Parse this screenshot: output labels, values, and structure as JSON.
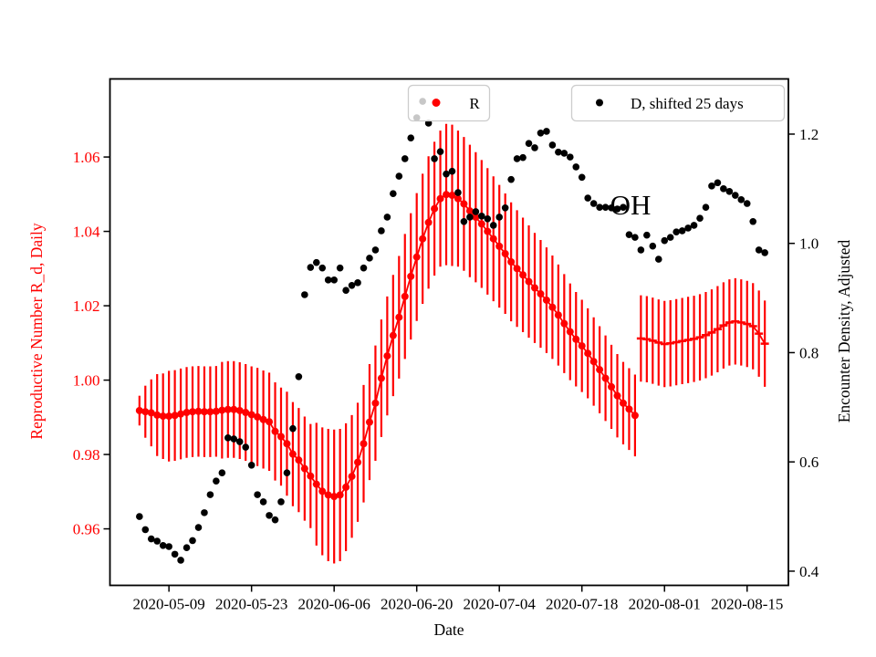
{
  "colors": {
    "r_series": "#ff0000",
    "d_series": "#000000",
    "frame": "#000000",
    "legend_border": "#cccccc"
  },
  "annotation": {
    "text": "OH"
  },
  "legend_r": {
    "label": "R"
  },
  "legend_d": {
    "label": "D, shifted 25 days"
  },
  "chart_data": {
    "type": "scatter",
    "title": "",
    "xlabel": "Date",
    "ylabel_left": "Reproductive Number R_d, Daily",
    "ylabel_right": "Encounter Density, Adjusted",
    "annotation": "OH",
    "legend_entries": [
      "R",
      "D, shifted 25 days"
    ],
    "legend_position": "upper center, two boxes",
    "grid": false,
    "x_start_date": "2020-05-04",
    "x_step_days": 1,
    "x_day_range": [
      -10,
      105
    ],
    "x_ticks": [
      {
        "label": "2020-05-09",
        "day": 0
      },
      {
        "label": "2020-05-23",
        "day": 14
      },
      {
        "label": "2020-06-06",
        "day": 28
      },
      {
        "label": "2020-06-20",
        "day": 42
      },
      {
        "label": "2020-07-04",
        "day": 56
      },
      {
        "label": "2020-07-18",
        "day": 70
      },
      {
        "label": "2020-08-01",
        "day": 84
      },
      {
        "label": "2020-08-15",
        "day": 98
      }
    ],
    "left_axis": {
      "range": [
        0.9448,
        1.081
      ],
      "ticks": [
        {
          "label": "1.06",
          "value": 1.06
        },
        {
          "label": "1.04",
          "value": 1.04
        },
        {
          "label": "1.02",
          "value": 1.02
        },
        {
          "label": "1.00",
          "value": 1.0
        },
        {
          "label": "0.98",
          "value": 0.98
        },
        {
          "label": "0.96",
          "value": 0.96
        }
      ]
    },
    "right_axis": {
      "range": [
        0.374,
        1.301
      ],
      "ticks": [
        {
          "label": "1.2",
          "value": 1.2
        },
        {
          "label": "1.0",
          "value": 1.0
        },
        {
          "label": "0.8",
          "value": 0.8
        },
        {
          "label": "0.6",
          "value": 0.6
        },
        {
          "label": "0.4",
          "value": 0.4
        }
      ]
    },
    "series": [
      {
        "name": "R",
        "axis": "left",
        "style": "dots with error bars, connected line",
        "start_day_offset": -5,
        "values": [
          0.9918,
          0.9915,
          0.9912,
          0.9906,
          0.9903,
          0.9903,
          0.9905,
          0.9909,
          0.9913,
          0.9915,
          0.9916,
          0.9915,
          0.9915,
          0.9916,
          0.9919,
          0.9921,
          0.9921,
          0.9918,
          0.9913,
          0.9907,
          0.9901,
          0.9894,
          0.9888,
          0.9862,
          0.9848,
          0.9829,
          0.9801,
          0.9785,
          0.9762,
          0.9742,
          0.972,
          0.9701,
          0.9691,
          0.9687,
          0.9691,
          0.9712,
          0.9741,
          0.9779,
          0.9829,
          0.9887,
          0.9938,
          1.0005,
          1.0065,
          1.012,
          1.0169,
          1.0225,
          1.0279,
          1.0331,
          1.038,
          1.0424,
          1.0461,
          1.0488,
          1.0499,
          1.0497,
          1.0488,
          1.0474,
          1.0455,
          1.0438,
          1.042,
          1.04,
          1.038,
          1.036,
          1.034,
          1.0318,
          1.03,
          1.0283,
          1.0265,
          1.0248,
          1.0232,
          1.0215,
          1.0196,
          1.0175,
          1.0152,
          1.013,
          1.011,
          1.0092,
          1.0072,
          1.005,
          1.0028,
          1.0005,
          0.9982,
          0.9958,
          0.9938,
          0.9922,
          0.9905
        ],
        "err": [
          0.004,
          0.007,
          0.009,
          0.011,
          0.0115,
          0.0122,
          0.0122,
          0.0122,
          0.0122,
          0.0122,
          0.0122,
          0.0122,
          0.0122,
          0.0122,
          0.013,
          0.013,
          0.013,
          0.013,
          0.013,
          0.013,
          0.0132,
          0.0132,
          0.0132,
          0.0132,
          0.0132,
          0.014,
          0.014,
          0.014,
          0.014,
          0.014,
          0.0165,
          0.0172,
          0.0178,
          0.018,
          0.0178,
          0.0172,
          0.0165,
          0.016,
          0.0158,
          0.0156,
          0.0155,
          0.0158,
          0.016,
          0.0163,
          0.0165,
          0.0168,
          0.017,
          0.0172,
          0.0175,
          0.0178,
          0.018,
          0.0183,
          0.019,
          0.019,
          0.0183,
          0.018,
          0.0178,
          0.0175,
          0.0172,
          0.017,
          0.0168,
          0.0165,
          0.0162,
          0.016,
          0.0157,
          0.0154,
          0.0151,
          0.0148,
          0.0145,
          0.0142,
          0.0139,
          0.0136,
          0.0133,
          0.013,
          0.0127,
          0.0124,
          0.0121,
          0.0119,
          0.0117,
          0.0115,
          0.0113,
          0.0112,
          0.0111,
          0.011,
          0.011
        ]
      },
      {
        "name": "R_forecast_segment",
        "axis": "left",
        "style": "line with dash markers and error bars, no dots",
        "start_day_offset": 80,
        "values": [
          1.0112,
          1.011,
          1.0106,
          1.0101,
          1.0097,
          1.0099,
          1.0102,
          1.0105,
          1.0108,
          1.0111,
          1.0115,
          1.0121,
          1.0128,
          1.0137,
          1.0147,
          1.0155,
          1.0158,
          1.0155,
          1.0151,
          1.0145,
          1.0125,
          1.0098
        ],
        "err": [
          0.0116,
          0.0116,
          0.0116,
          0.0116,
          0.0116,
          0.0116,
          0.0116,
          0.0116,
          0.0116,
          0.0116,
          0.0116,
          0.0116,
          0.0116,
          0.0116,
          0.0116,
          0.0116,
          0.0116,
          0.0116,
          0.0116,
          0.0116,
          0.0116,
          0.0116
        ]
      },
      {
        "name": "D, shifted 25 days",
        "axis": "right",
        "style": "scatter dots",
        "start_day_offset": -5,
        "values": [
          0.5,
          0.476,
          0.459,
          0.455,
          0.447,
          0.445,
          0.431,
          0.42,
          0.443,
          0.456,
          0.48,
          0.507,
          0.54,
          0.565,
          0.58,
          0.644,
          0.642,
          0.637,
          0.627,
          0.594,
          0.54,
          0.527,
          0.502,
          0.494,
          0.527,
          0.58,
          0.661,
          0.756,
          0.906,
          0.956,
          0.965,
          0.955,
          0.933,
          0.933,
          0.955,
          0.914,
          0.923,
          0.928,
          0.955,
          0.973,
          0.988,
          1.023,
          1.048,
          1.091,
          1.123,
          1.155,
          1.193,
          1.23,
          1.26,
          1.22,
          1.155,
          1.168,
          1.127,
          1.132,
          1.093,
          1.04,
          1.048,
          1.058,
          1.05,
          1.045,
          1.033,
          1.048,
          1.065,
          1.117,
          1.155,
          1.157,
          1.183,
          1.175,
          1.202,
          1.205,
          1.18,
          1.167,
          1.165,
          1.158,
          1.14,
          1.121,
          1.083,
          1.073,
          1.066,
          1.066,
          1.065,
          1.063,
          1.066,
          1.016,
          1.011,
          0.988,
          1.015,
          0.995,
          0.971,
          1.005,
          1.011,
          1.021,
          1.023,
          1.028,
          1.033,
          1.046,
          1.066,
          1.105,
          1.111,
          1.1,
          1.095,
          1.088,
          1.08,
          1.073,
          1.04,
          0.988,
          0.983
        ]
      }
    ]
  }
}
